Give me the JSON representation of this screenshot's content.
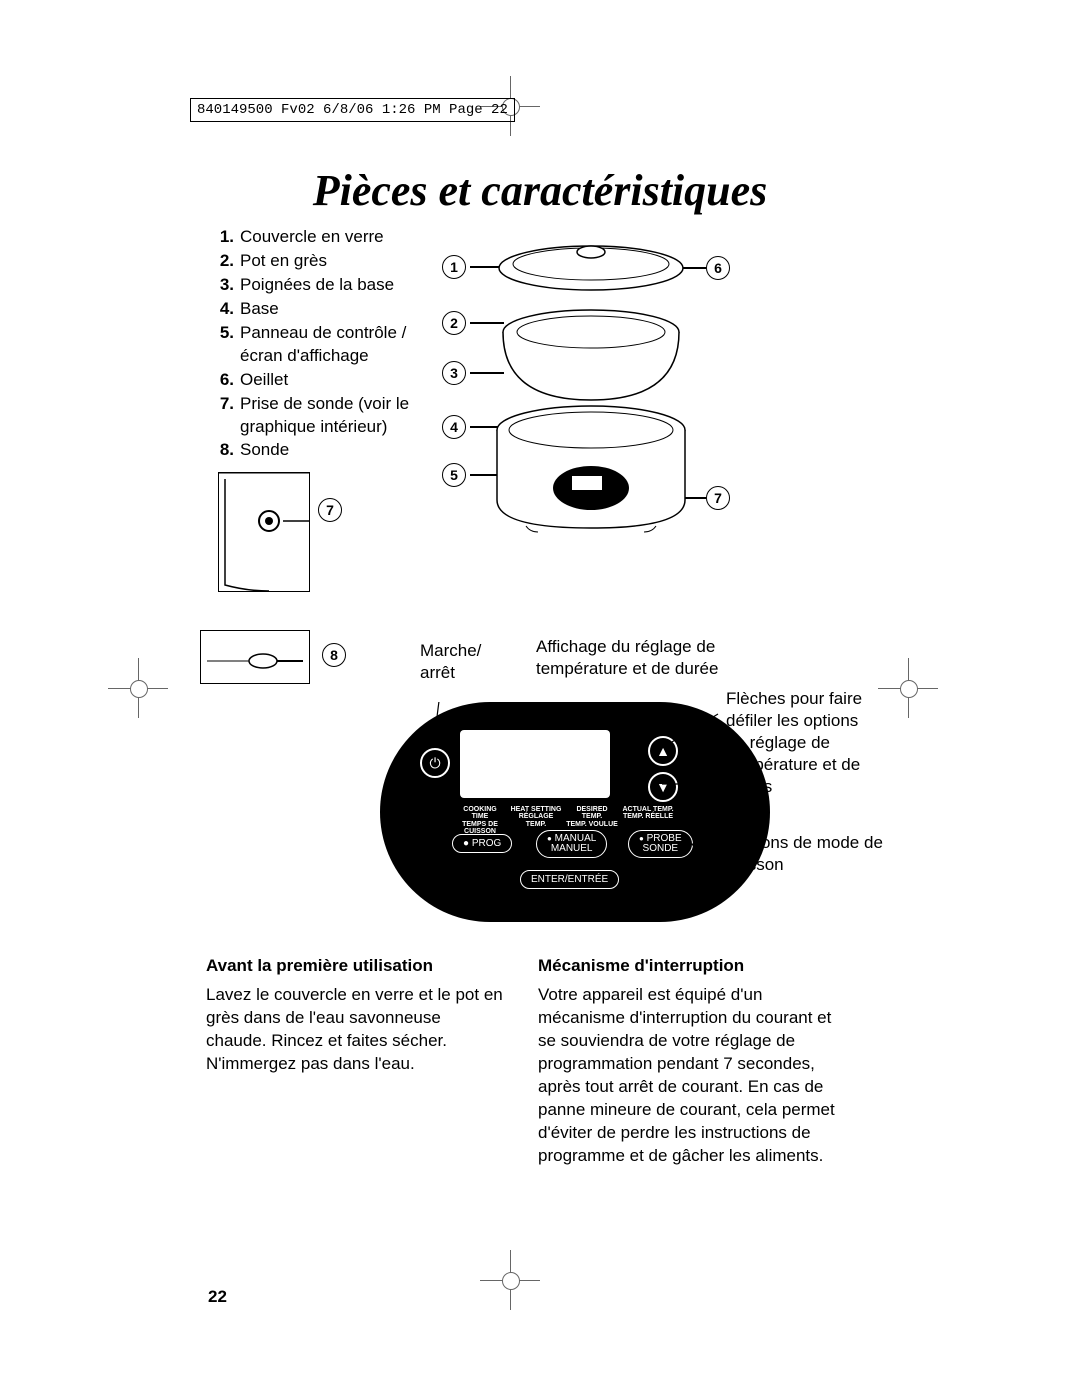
{
  "header": "840149500 Fv02  6/8/06  1:26 PM  Page 22",
  "title": "Pièces et caractéristiques",
  "parts": [
    {
      "n": "1.",
      "t": "Couvercle en verre"
    },
    {
      "n": "2.",
      "t": "Pot en grès"
    },
    {
      "n": "3.",
      "t": "Poignées de la base"
    },
    {
      "n": "4.",
      "t": "Base"
    },
    {
      "n": "5.",
      "t": "Panneau de contrôle / écran d'affichage"
    },
    {
      "n": "6.",
      "t": "Oeillet"
    },
    {
      "n": "7.",
      "t": "Prise de sonde (voir le graphique intérieur)"
    },
    {
      "n": "8.",
      "t": "Sonde"
    }
  ],
  "callouts_left": [
    "1",
    "2",
    "3",
    "4",
    "5"
  ],
  "callout_6": "6",
  "callout_7a": "7",
  "callout_7b": "7",
  "callout_7c": "7",
  "callout_8": "8",
  "panel_labels": {
    "power": "Marche/\narrêt",
    "display": "Affichage du réglage de température et de durée",
    "arrows": "Flèches pour faire défiler les options de réglage de température et de temps",
    "mode": "Boutons de mode de cuisson"
  },
  "panel_buttons": {
    "prog": "PROG",
    "manual": "MANUAL\nMANUEL",
    "probe": "PROBE\nSONDE",
    "enter": "ENTER/ENTRÉE",
    "tl1a": "COOKING TIME",
    "tl1b": "TEMPS DE CUISSON",
    "tl2a": "HEAT SETTING",
    "tl2b": "RÉGLAGE TEMP.",
    "tl3a": "DESIRED TEMP.",
    "tl3b": "TEMP. VOULUE",
    "tl4a": "ACTUAL TEMP.",
    "tl4b": "TEMP. RÉELLE"
  },
  "sec1_h": "Avant la première utilisation",
  "sec1_b": "Lavez le couvercle en verre et le pot en grès dans de l'eau savonneuse chaude. Rincez et faites sécher. N'immergez pas dans l'eau.",
  "sec2_h": "Mécanisme d'interruption",
  "sec2_b": "Votre appareil est équipé d'un mécanisme d'interruption du courant et se souviendra de votre réglage de programmation pendant 7 secondes, après tout arrêt de courant. En cas de panne mineure de courant, cela permet d'éviter de perdre les instructions de programme et de gâcher les aliments.",
  "page_number": "22",
  "colors": {
    "border": "#000",
    "reg": "#666"
  }
}
